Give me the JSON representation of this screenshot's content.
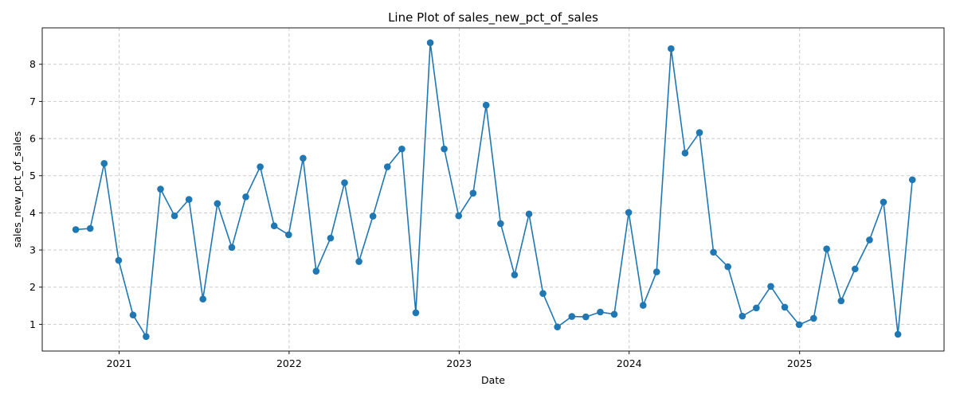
{
  "chart_data": {
    "type": "line",
    "title": "Line Plot of sales_new_pct_of_sales",
    "xlabel": "Date",
    "ylabel": "sales_new_pct_of_sales",
    "x_tick_labels": [
      "2021",
      "2022",
      "2023",
      "2024",
      "2025"
    ],
    "y_tick_labels": [
      "1",
      "2",
      "3",
      "4",
      "5",
      "6",
      "7",
      "8"
    ],
    "y_ticks": [
      1,
      2,
      3,
      4,
      5,
      6,
      7,
      8
    ],
    "xlim": [
      "2020-07-20",
      "2025-11-07"
    ],
    "ylim": [
      0.28,
      8.98
    ],
    "grid": true,
    "color": "#1f77b4",
    "marker": "circle",
    "series": [
      {
        "x": [
          "2020-09-30",
          "2020-10-31",
          "2020-11-30",
          "2020-12-31",
          "2021-01-31",
          "2021-02-28",
          "2021-03-31",
          "2021-04-30",
          "2021-05-31",
          "2021-06-30",
          "2021-07-31",
          "2021-08-31",
          "2021-09-30",
          "2021-10-31",
          "2021-11-30",
          "2021-12-31",
          "2022-01-31",
          "2022-02-28",
          "2022-03-31",
          "2022-04-30",
          "2022-05-31",
          "2022-06-30",
          "2022-07-31",
          "2022-08-31",
          "2022-09-30",
          "2022-10-31",
          "2022-11-30",
          "2022-12-31",
          "2023-01-31",
          "2023-02-28",
          "2023-03-31",
          "2023-04-30",
          "2023-05-31",
          "2023-06-30",
          "2023-07-31",
          "2023-08-31",
          "2023-09-30",
          "2023-10-31",
          "2023-11-30",
          "2023-12-31",
          "2024-01-31",
          "2024-02-29",
          "2024-03-31",
          "2024-04-30",
          "2024-05-31",
          "2024-06-30",
          "2024-07-31",
          "2024-08-31",
          "2024-09-30",
          "2024-10-31",
          "2024-11-30",
          "2024-12-31",
          "2025-01-31",
          "2025-02-28",
          "2025-03-31",
          "2025-04-30",
          "2025-05-31",
          "2025-06-30",
          "2025-07-31",
          "2025-08-31"
        ],
        "values": [
          3.55,
          3.58,
          5.33,
          2.72,
          1.25,
          0.67,
          4.64,
          3.92,
          4.36,
          1.68,
          4.25,
          3.07,
          4.43,
          5.24,
          3.65,
          3.41,
          5.47,
          2.43,
          3.32,
          4.81,
          2.69,
          3.91,
          5.24,
          5.72,
          1.31,
          8.58,
          5.72,
          3.92,
          4.53,
          6.9,
          3.71,
          2.33,
          3.97,
          1.83,
          0.93,
          1.21,
          1.2,
          1.33,
          1.27,
          4.01,
          1.51,
          2.41,
          8.42,
          5.61,
          6.16,
          2.94,
          2.55,
          1.22,
          1.44,
          2.02,
          1.46,
          0.99,
          1.16,
          3.03,
          1.63,
          2.49,
          3.27,
          4.29,
          0.73,
          4.89
        ]
      }
    ]
  }
}
